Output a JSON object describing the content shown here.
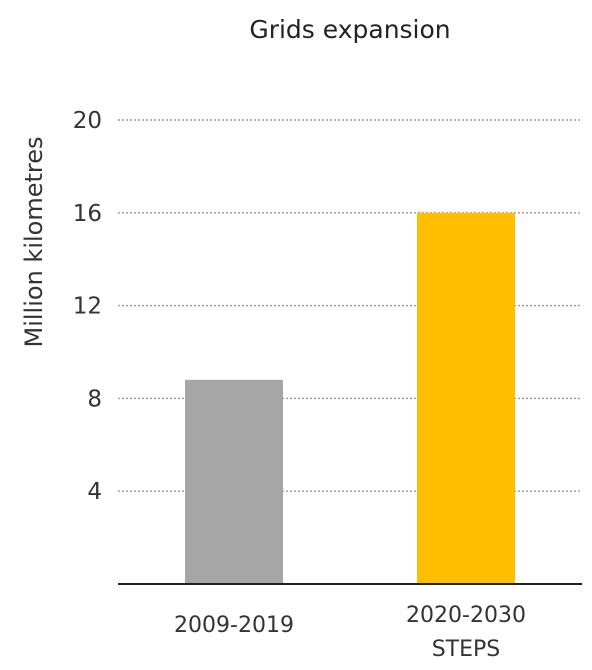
{
  "chart_data": {
    "type": "bar",
    "title": "Grids expansion",
    "xlabel": "",
    "ylabel": "Million kilometres",
    "categories": [
      [
        "2009-2019"
      ],
      [
        "2020-2030",
        "STEPS"
      ]
    ],
    "values": [
      8.8,
      16.0
    ],
    "colors": [
      "#a6a6a6",
      "#ffbf00"
    ],
    "ylim": [
      0,
      20
    ],
    "yticks": [
      4,
      8,
      12,
      16,
      20
    ],
    "grid": "horizontal-dotted",
    "legend": "none"
  }
}
